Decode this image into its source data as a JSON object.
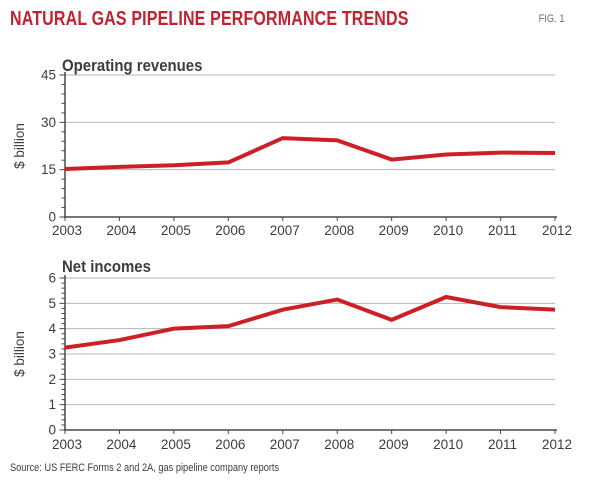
{
  "header": {
    "title": "NATURAL GAS PIPELINE PERFORMANCE TRENDS",
    "fig_label": "FIG. 1"
  },
  "source_note": "Source: US FERC Forms 2 and 2A, gas pipeline company reports",
  "colors": {
    "accent_red": "#C2212E",
    "line_red": "#CC2027",
    "grid": "#B4B5B7",
    "axis": "#47484A",
    "text": "#3B3D40",
    "fig_label": "#6B6D70"
  },
  "chart_data": [
    {
      "type": "line",
      "title": "Operating revenues",
      "ylabel": "$ billion",
      "xlabel": "",
      "x": [
        2003,
        2004,
        2005,
        2006,
        2007,
        2008,
        2009,
        2010,
        2011,
        2012
      ],
      "series": [
        {
          "name": "Operating revenues",
          "values": [
            15.2,
            15.9,
            16.4,
            17.3,
            25.0,
            24.3,
            18.2,
            19.8,
            20.4,
            20.3
          ]
        }
      ],
      "ylim": [
        0,
        45
      ],
      "ytick_major": 15,
      "ytick_minor": 3,
      "grid": "horizontal-major",
      "legend": "none"
    },
    {
      "type": "line",
      "title": "Net incomes",
      "ylabel": "$ billion",
      "xlabel": "",
      "x": [
        2003,
        2004,
        2005,
        2006,
        2007,
        2008,
        2009,
        2010,
        2011,
        2012
      ],
      "series": [
        {
          "name": "Net incomes",
          "values": [
            3.25,
            3.55,
            4.0,
            4.1,
            4.75,
            5.15,
            4.35,
            5.25,
            4.85,
            4.75
          ]
        }
      ],
      "ylim": [
        0,
        6
      ],
      "ytick_major": 1,
      "ytick_minor": 0.2,
      "grid": "horizontal-major",
      "legend": "none"
    }
  ]
}
